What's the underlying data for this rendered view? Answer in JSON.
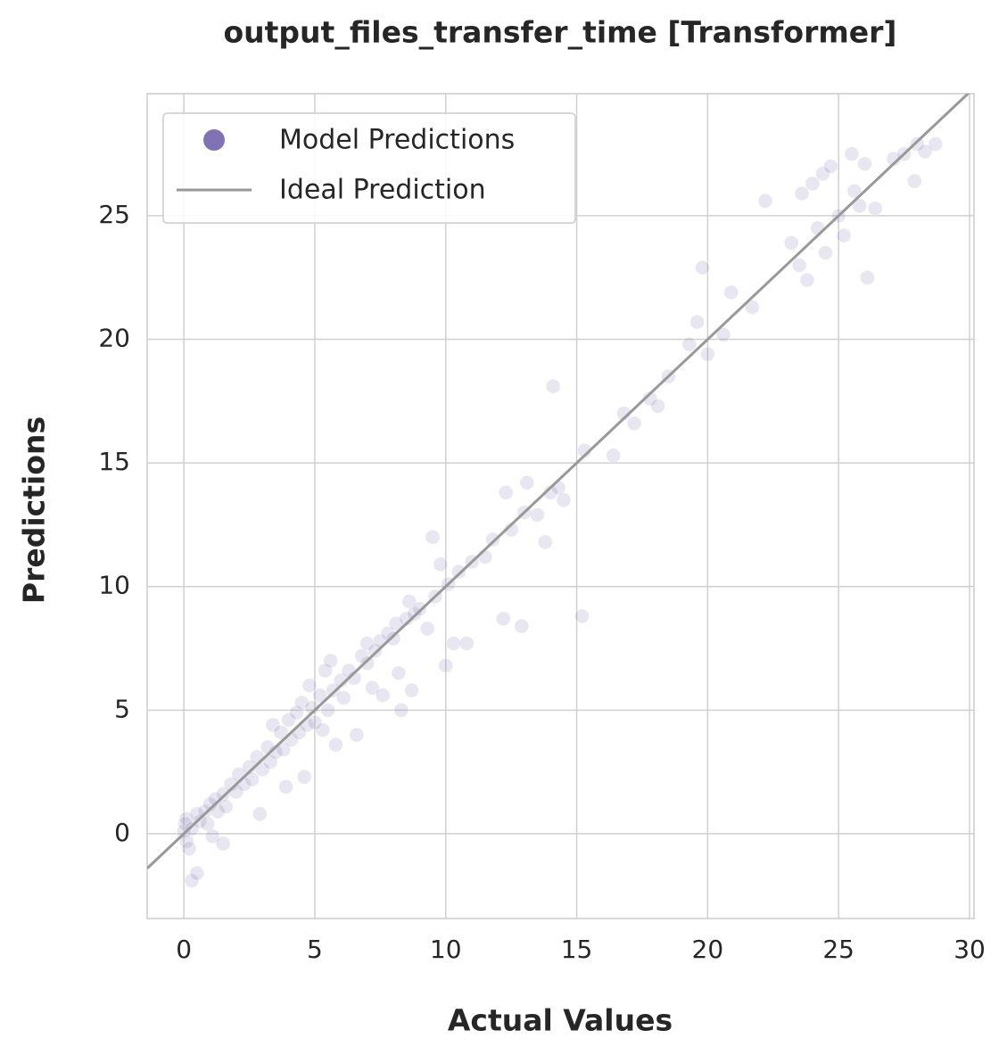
{
  "chart_data": {
    "type": "scatter",
    "title": "output_files_transfer_time [Transformer]",
    "xlabel": "Actual Values",
    "ylabel": "Predictions",
    "xlim": [
      -1.4,
      30.17
    ],
    "ylim": [
      -3.43,
      29.94
    ],
    "xticks": [
      0,
      5,
      10,
      15,
      20,
      25,
      30
    ],
    "yticks": [
      0,
      5,
      10,
      15,
      20,
      25
    ],
    "grid": true,
    "legend": "upper left",
    "series": [
      {
        "name": "Model Predictions",
        "color": "#8172b3",
        "x": [
          0,
          0.05,
          0.1,
          0.1,
          0.2,
          0.3,
          0.5,
          0.3,
          0.5,
          0.6,
          0.8,
          0.9,
          1.0,
          1.1,
          1.2,
          1.3,
          1.5,
          1.6,
          1.5,
          1.8,
          2.0,
          2.1,
          2.3,
          2.5,
          2.6,
          2.8,
          2.9,
          3.0,
          3.2,
          3.3,
          3.4,
          3.5,
          3.7,
          3.8,
          3.9,
          4.0,
          4.1,
          4.3,
          4.4,
          4.5,
          4.6,
          4.7,
          4.8,
          4.9,
          5.0,
          5.2,
          5.3,
          5.4,
          5.5,
          5.6,
          5.7,
          5.8,
          6.0,
          6.1,
          6.3,
          6.5,
          6.6,
          6.8,
          7.0,
          7.0,
          7.2,
          7.3,
          7.5,
          7.6,
          7.8,
          8.0,
          8.1,
          8.2,
          8.3,
          8.5,
          8.6,
          8.7,
          8.8,
          9.0,
          9.3,
          9.5,
          9.6,
          9.8,
          10.0,
          10.1,
          10.3,
          10.5,
          10.8,
          11.0,
          11.5,
          11.8,
          12.2,
          12.3,
          12.5,
          12.9,
          13.0,
          13.1,
          13.5,
          13.8,
          14.0,
          14.1,
          14.3,
          14.5,
          15.2,
          15.3,
          16.4,
          16.8,
          17.2,
          17.8,
          18.1,
          18.5,
          19.3,
          19.6,
          19.8,
          20.0,
          20.6,
          20.9,
          21.7,
          22.2,
          23.2,
          23.5,
          23.6,
          23.8,
          24.0,
          24.2,
          24.4,
          24.5,
          24.7,
          25.0,
          25.2,
          25.5,
          25.6,
          25.8,
          26.0,
          26.1,
          26.4,
          27.1,
          27.5,
          27.9,
          28.0,
          28.3,
          28.7
        ],
        "y": [
          0.1,
          0.4,
          -0.3,
          0.6,
          -0.6,
          -1.9,
          -1.6,
          0.2,
          0.8,
          0.5,
          0.9,
          0.4,
          1.2,
          -0.1,
          1.4,
          0.9,
          1.6,
          1.1,
          -0.4,
          2.0,
          1.7,
          2.4,
          2.0,
          2.7,
          2.2,
          3.1,
          0.8,
          2.6,
          3.5,
          2.9,
          4.4,
          3.3,
          4.1,
          3.4,
          1.9,
          4.6,
          3.8,
          4.9,
          4.1,
          5.3,
          2.3,
          4.4,
          6.0,
          5.1,
          4.5,
          5.6,
          4.2,
          6.6,
          5.0,
          7.0,
          5.8,
          3.6,
          6.2,
          5.5,
          6.6,
          6.3,
          4.0,
          7.2,
          6.9,
          7.7,
          5.9,
          7.4,
          7.8,
          5.6,
          8.1,
          7.9,
          8.5,
          6.5,
          5.0,
          8.7,
          9.4,
          5.8,
          8.9,
          9.1,
          8.3,
          12.0,
          9.6,
          10.9,
          6.8,
          10.1,
          7.7,
          10.6,
          7.7,
          11.0,
          11.2,
          11.9,
          8.7,
          13.8,
          12.3,
          8.4,
          13.0,
          14.2,
          12.9,
          11.8,
          13.8,
          18.1,
          14.0,
          13.5,
          8.8,
          15.5,
          15.3,
          17.0,
          16.6,
          17.6,
          17.3,
          18.5,
          19.8,
          20.7,
          22.9,
          19.4,
          20.2,
          21.9,
          21.3,
          25.6,
          23.9,
          23.0,
          25.9,
          22.4,
          26.3,
          24.5,
          26.7,
          23.5,
          27.0,
          25.0,
          24.2,
          27.5,
          26.0,
          25.4,
          27.1,
          22.5,
          25.3,
          27.3,
          27.5,
          26.4,
          27.9,
          27.6,
          27.9
        ]
      },
      {
        "name": "Ideal Prediction",
        "color": "#999999",
        "x": [
          -1.4,
          30.2
        ],
        "y": [
          -1.4,
          30.2
        ]
      }
    ]
  }
}
